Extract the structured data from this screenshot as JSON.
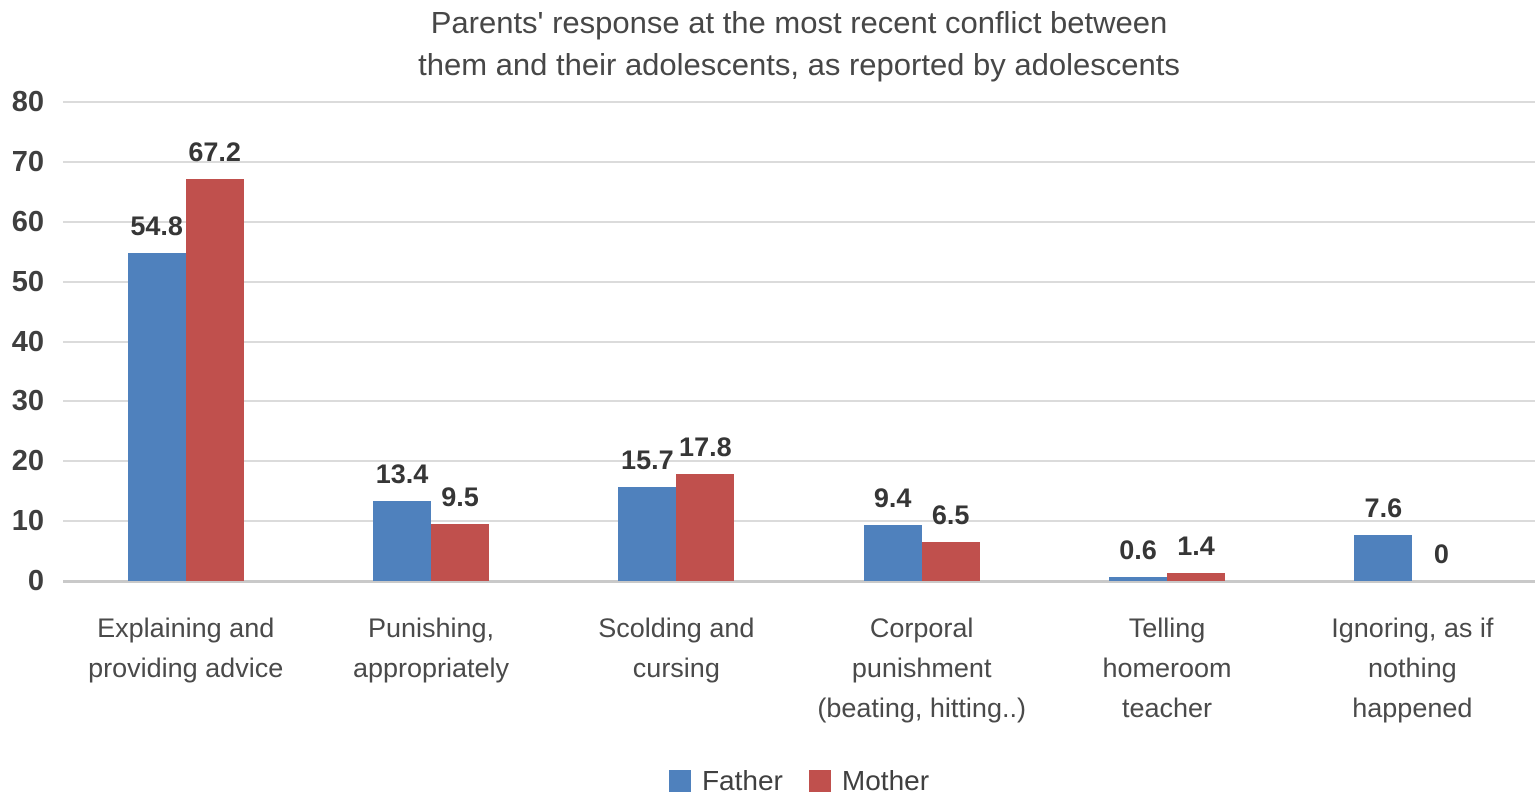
{
  "chart": {
    "title_display": "Parents' response at the most recent conflict between\nthem and their adolescents, as reported by adolescents"
  },
  "chart_data": {
    "type": "bar",
    "title": "Parents' response at the most recent conflict between them and their adolescents, as reported by adolescents",
    "categories": [
      "Explaining and providing advice",
      "Punishing, appropriately",
      "Scolding and cursing",
      "Corporal punishment (beating, hitting..)",
      "Telling homeroom teacher",
      "Ignoring, as if nothing happened"
    ],
    "category_display_lines": [
      [
        "Explaining and",
        "providing advice"
      ],
      [
        "Punishing,",
        "appropriately"
      ],
      [
        "Scolding and",
        "cursing"
      ],
      [
        "Corporal",
        "punishment",
        "(beating, hitting..)"
      ],
      [
        "Telling",
        "homeroom",
        "teacher"
      ],
      [
        "Ignoring, as if",
        "nothing",
        "happened"
      ]
    ],
    "series": [
      {
        "name": "Father",
        "color": "#4F81BD",
        "values": [
          54.8,
          13.4,
          15.7,
          9.4,
          0.6,
          7.6
        ]
      },
      {
        "name": "Mother",
        "color": "#C0504D",
        "values": [
          67.2,
          9.5,
          17.8,
          6.5,
          1.4,
          0
        ]
      }
    ],
    "data_labels": [
      [
        "54.8",
        "13.4",
        "15.7",
        "9.4",
        "0.6",
        "7.6"
      ],
      [
        "67.2",
        "9.5",
        "17.8",
        "6.5",
        "1.4",
        "0"
      ]
    ],
    "yticks": [
      0,
      10,
      20,
      30,
      40,
      50,
      60,
      70,
      80
    ],
    "ylim": [
      0,
      80
    ],
    "xlabel": "",
    "ylabel": "",
    "grid": true,
    "legend_position": "bottom",
    "colors": {
      "gridline": "#DBDBDB",
      "axis_line": "#C9C9C9",
      "text": "#404040"
    }
  }
}
